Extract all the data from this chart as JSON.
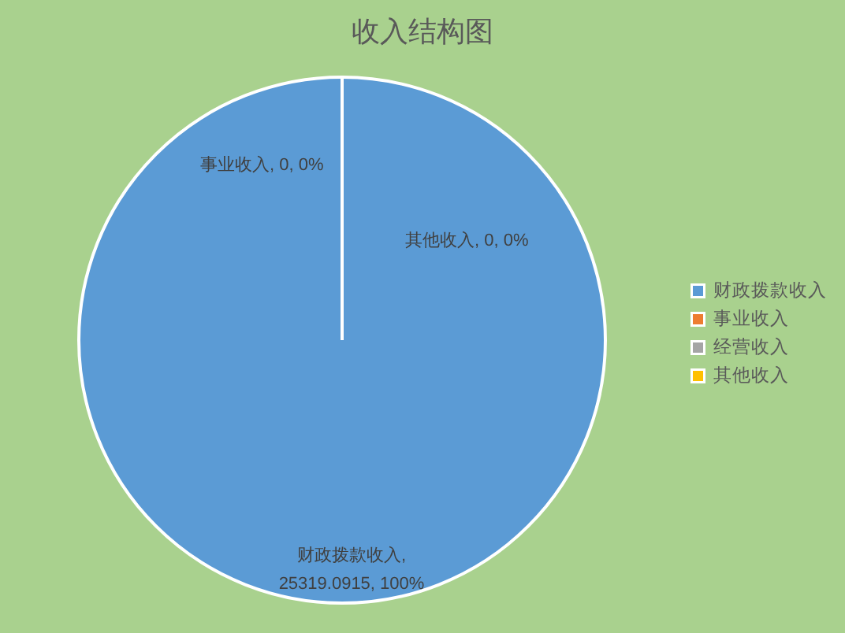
{
  "chart_data": {
    "type": "pie",
    "title": "收入结构图",
    "categories": [
      "财政拨款收入",
      "事业收入",
      "经营收入",
      "其他收入"
    ],
    "values": [
      25319.0915,
      0,
      0,
      0
    ],
    "colors": [
      "#5b9bd5",
      "#ed7d31",
      "#a5a5a5",
      "#ffc000"
    ],
    "value_labels": [
      "财政拨款收入, 25319.0915, 100%",
      "事业收入, 0, 0%",
      null,
      "其他收入, 0, 0%"
    ],
    "legend": "right"
  }
}
